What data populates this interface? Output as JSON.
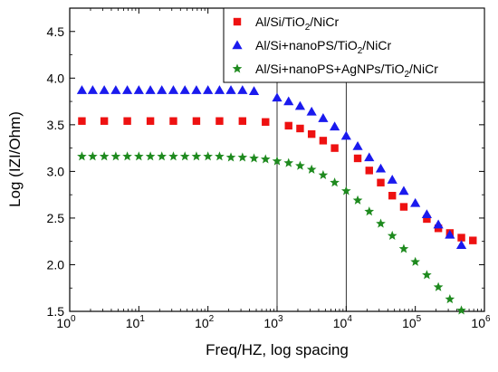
{
  "chart_data": {
    "type": "scatter",
    "x_scale": "log",
    "xlabel": "Freq/HZ, log spacing",
    "ylabel": "Log (IZI/Ohm)",
    "xlim": [
      1,
      1000000
    ],
    "ylim": [
      1.5,
      4.75
    ],
    "x_ticks": [
      {
        "value": 1,
        "base": "10",
        "exp": "0"
      },
      {
        "value": 10,
        "base": "10",
        "exp": "1"
      },
      {
        "value": 100,
        "base": "10",
        "exp": "2"
      },
      {
        "value": 1000,
        "base": "10",
        "exp": "3"
      },
      {
        "value": 10000,
        "base": "10",
        "exp": "4"
      },
      {
        "value": 100000,
        "base": "10",
        "exp": "5"
      },
      {
        "value": 1000000,
        "base": "10",
        "exp": "6"
      }
    ],
    "y_ticks": [
      "1.5",
      "2.0",
      "2.5",
      "3.0",
      "3.5",
      "4.0",
      "4.5"
    ],
    "reference_lines_x": [
      1000,
      10000
    ],
    "legend_position": "top-right",
    "series": [
      {
        "name_parts": [
          "Al/Si/TiO",
          "2",
          "/NiCr"
        ],
        "marker": "square",
        "color": "#ee1111",
        "x": [
          1.5,
          3.16,
          6.81,
          14.7,
          31.6,
          68.1,
          147,
          316,
          681,
          1468,
          2154,
          3162,
          4642,
          6813,
          14678,
          21544,
          31623,
          46416,
          68129,
          146780,
          215440,
          316230,
          464160,
          681290
        ],
        "y": [
          3.54,
          3.54,
          3.54,
          3.54,
          3.54,
          3.54,
          3.54,
          3.54,
          3.53,
          3.49,
          3.46,
          3.4,
          3.33,
          3.25,
          3.14,
          3.01,
          2.88,
          2.74,
          2.62,
          2.49,
          2.39,
          2.34,
          2.29,
          2.26
        ]
      },
      {
        "name_parts": [
          "Al/Si+nanoPS/TiO",
          "2",
          "/NiCr"
        ],
        "marker": "triangle",
        "color": "#1a1aee",
        "x": [
          1.5,
          2.15,
          3.16,
          4.64,
          6.81,
          10,
          14.7,
          21.5,
          31.6,
          46.4,
          68.1,
          100,
          147,
          215,
          316,
          464,
          1000,
          1468,
          2154,
          3162,
          4642,
          6813,
          10000,
          14678,
          21544,
          31623,
          46416,
          68129,
          100000,
          146780,
          215440,
          316230,
          464160
        ],
        "y": [
          3.87,
          3.87,
          3.87,
          3.87,
          3.87,
          3.87,
          3.87,
          3.87,
          3.87,
          3.87,
          3.87,
          3.87,
          3.87,
          3.87,
          3.87,
          3.86,
          3.79,
          3.75,
          3.7,
          3.64,
          3.57,
          3.48,
          3.38,
          3.27,
          3.15,
          3.03,
          2.91,
          2.79,
          2.66,
          2.54,
          2.43,
          2.32,
          2.21
        ]
      },
      {
        "name_parts": [
          "Al/Si+nanoPS+AgNPs/TiO",
          "2",
          "/NiCr"
        ],
        "marker": "star",
        "color": "#1e8a1e",
        "x": [
          1.5,
          2.15,
          3.16,
          4.64,
          6.81,
          10,
          14.7,
          21.5,
          31.6,
          46.4,
          68.1,
          100,
          147,
          215,
          316,
          464,
          681,
          1000,
          1468,
          2154,
          3162,
          4642,
          6813,
          10000,
          14678,
          21544,
          31623,
          46416,
          68129,
          100000,
          146780,
          215440,
          316230,
          464160
        ],
        "y": [
          3.16,
          3.16,
          3.16,
          3.16,
          3.16,
          3.16,
          3.16,
          3.16,
          3.16,
          3.16,
          3.16,
          3.16,
          3.16,
          3.15,
          3.15,
          3.14,
          3.13,
          3.11,
          3.09,
          3.06,
          3.02,
          2.96,
          2.88,
          2.79,
          2.69,
          2.57,
          2.44,
          2.31,
          2.17,
          2.03,
          1.89,
          1.76,
          1.63,
          1.51
        ]
      }
    ]
  }
}
